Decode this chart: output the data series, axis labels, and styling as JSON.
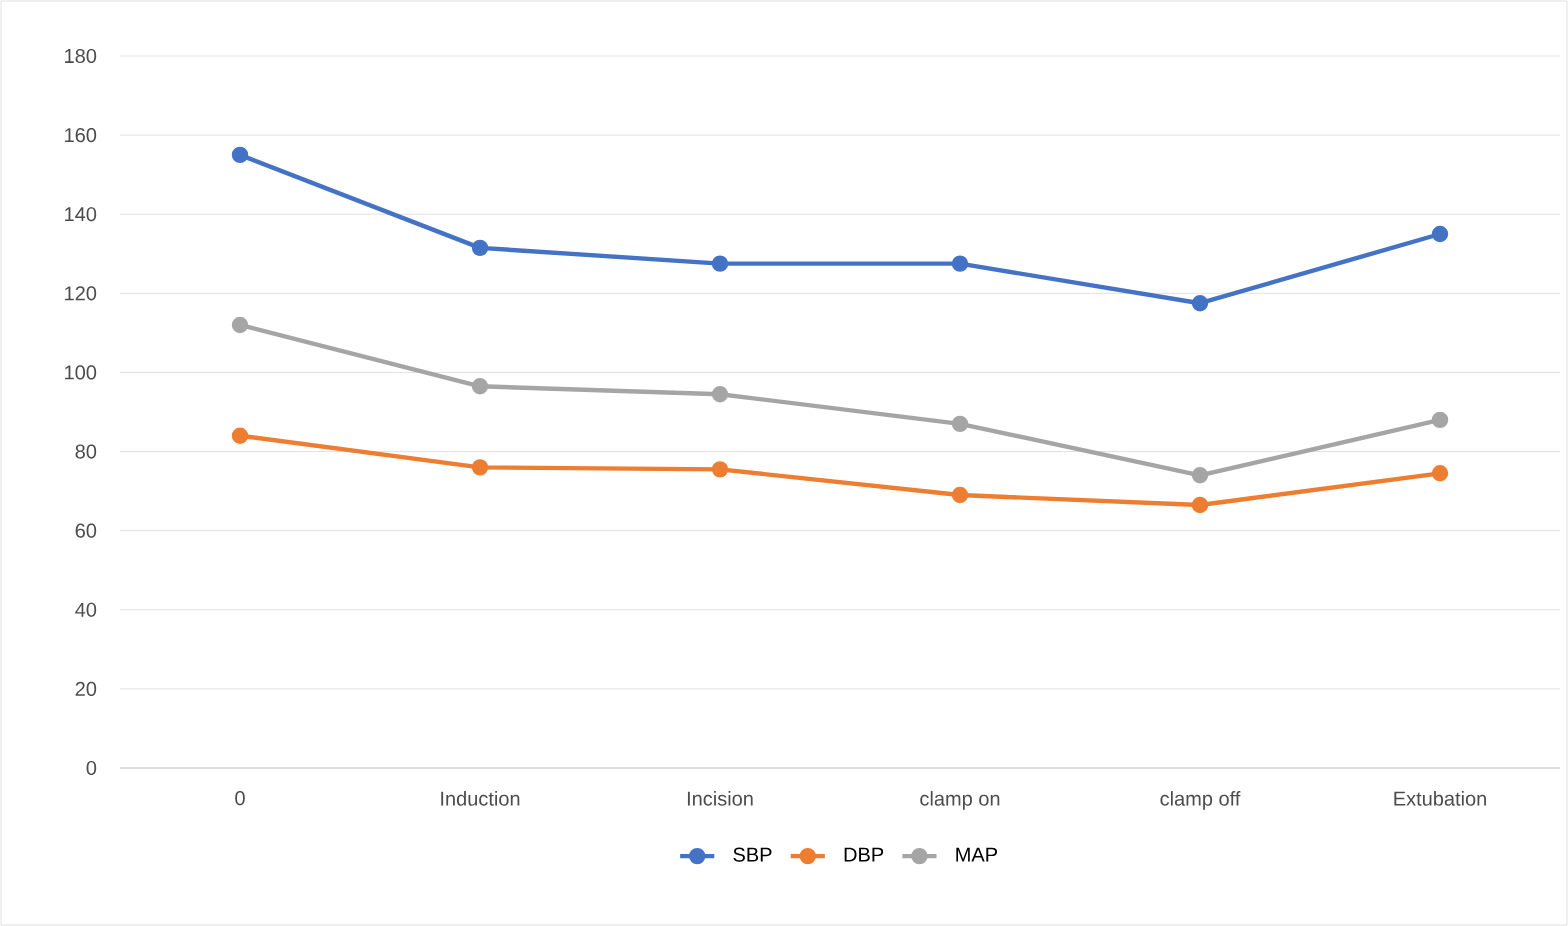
{
  "chart_data": {
    "type": "line",
    "categories": [
      "0",
      "Induction",
      "Incision",
      "clamp on",
      "clamp off",
      "Extubation"
    ],
    "series": [
      {
        "name": "SBP",
        "color": "#4472c4",
        "values": [
          155,
          131.5,
          127.5,
          127.5,
          117.5,
          135
        ]
      },
      {
        "name": "DBP",
        "color": "#ed7d31",
        "values": [
          84,
          76,
          75.5,
          69,
          66.5,
          74.5
        ]
      },
      {
        "name": "MAP",
        "color": "#a5a5a5",
        "values": [
          112,
          96.5,
          94.5,
          87,
          74,
          88
        ]
      }
    ],
    "ylim": [
      0,
      180
    ],
    "yticks": [
      0,
      20,
      40,
      60,
      80,
      100,
      120,
      140,
      160,
      180
    ],
    "grid": "y",
    "legend": "bottom",
    "marker": "circle",
    "line_style": "solid"
  }
}
